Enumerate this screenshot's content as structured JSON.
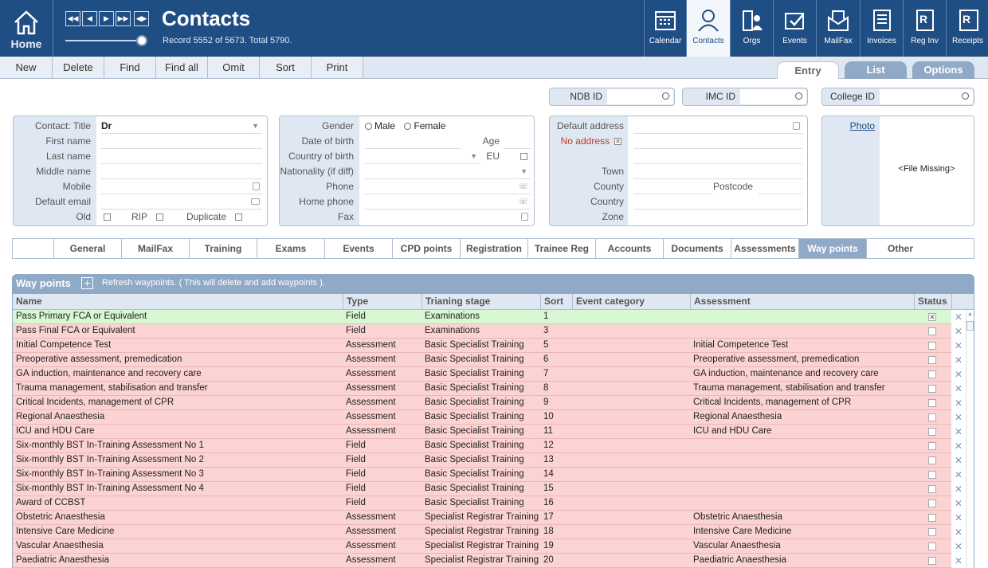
{
  "header": {
    "home_label": "Home",
    "title": "Contacts",
    "record_text": "Record 5552 of 5673. Total 5790.",
    "nav": [
      {
        "label": "Calendar",
        "icon": "calendar-icon"
      },
      {
        "label": "Contacts",
        "icon": "person-icon",
        "active": true
      },
      {
        "label": "Orgs",
        "icon": "orgs-icon"
      },
      {
        "label": "Events",
        "icon": "events-icon"
      },
      {
        "label": "MailFax",
        "icon": "mail-icon"
      },
      {
        "label": "Invoices",
        "icon": "invoice-icon"
      },
      {
        "label": "Reg Inv",
        "icon": "reg-inv-icon"
      },
      {
        "label": "Receipts",
        "icon": "receipts-icon"
      }
    ]
  },
  "toolbar": {
    "new": "New",
    "delete": "Delete",
    "find": "Find",
    "find_all": "Find all",
    "omit": "Omit",
    "sort": "Sort",
    "print": "Print"
  },
  "view_tabs": {
    "entry": "Entry",
    "list": "List",
    "options": "Options"
  },
  "ids": {
    "ndb": "NDB ID",
    "imc": "IMC ID",
    "college": "College ID"
  },
  "contact": {
    "title_label": "Contact: Title",
    "title_value": "Dr",
    "first_name": "First name",
    "last_name": "Last name",
    "middle_name": "Middle name",
    "mobile": "Mobile",
    "default_email": "Default email",
    "old": "Old",
    "rip": "RIP",
    "duplicate": "Duplicate"
  },
  "personal": {
    "gender": "Gender",
    "male": "Male",
    "female": "Female",
    "dob": "Date of birth",
    "age": "Age",
    "country_birth": "Country of birth",
    "eu": "EU",
    "nationality": "Nationality (if diff)",
    "phone": "Phone",
    "home_phone": "Home phone",
    "fax": "Fax"
  },
  "address": {
    "default_address": "Default address",
    "no_address": "No address",
    "town": "Town",
    "county": "County",
    "postcode": "Postcode",
    "country": "Country",
    "zone": "Zone"
  },
  "photo": {
    "label": "Photo",
    "missing": "<File Missing>"
  },
  "subtabs": [
    "General",
    "MailFax",
    "Training",
    "Exams",
    "Events",
    "CPD points",
    "Registration",
    "Trainee Reg",
    "Accounts",
    "Documents",
    "Assessments",
    "Way points",
    "Other"
  ],
  "waypoints": {
    "title": "Way points",
    "add_symbol": "+",
    "refresh": "Refresh waypoints. ( This will delete and add waypoints ).",
    "columns": {
      "name": "Name",
      "type": "Type",
      "stage": "Trianing stage",
      "sort": "Sort",
      "event": "Event category",
      "assessment": "Assessment",
      "status": "Status"
    },
    "rows": [
      {
        "name": "Pass Primary FCA or Equivalent",
        "type": "Field",
        "stage": "Examinations",
        "sort": "1",
        "assessment": "",
        "done": true
      },
      {
        "name": "Pass Final FCA or Equivalent",
        "type": "Field",
        "stage": "Examinations",
        "sort": "3",
        "assessment": ""
      },
      {
        "name": "Initial Competence Test",
        "type": "Assessment",
        "stage": "Basic Specialist Training",
        "sort": "5",
        "assessment": "Initial Competence Test"
      },
      {
        "name": "Preoperative assessment, premedication",
        "type": "Assessment",
        "stage": "Basic Specialist Training",
        "sort": "6",
        "assessment": "Preoperative assessment, premedication"
      },
      {
        "name": "GA induction, maintenance and recovery care",
        "type": "Assessment",
        "stage": "Basic Specialist Training",
        "sort": "7",
        "assessment": "GA induction, maintenance and recovery care"
      },
      {
        "name": "Trauma management, stabilisation and transfer",
        "type": "Assessment",
        "stage": "Basic Specialist Training",
        "sort": "8",
        "assessment": "Trauma management, stabilisation and transfer"
      },
      {
        "name": "Critical Incidents, management of CPR",
        "type": "Assessment",
        "stage": "Basic Specialist Training",
        "sort": "9",
        "assessment": "Critical Incidents, management of CPR"
      },
      {
        "name": "Regional Anaesthesia",
        "type": "Assessment",
        "stage": "Basic Specialist Training",
        "sort": "10",
        "assessment": "Regional Anaesthesia"
      },
      {
        "name": "ICU and HDU Care",
        "type": "Assessment",
        "stage": "Basic Specialist Training",
        "sort": "11",
        "assessment": "ICU and HDU Care"
      },
      {
        "name": "Six-monthly BST In-Training Assessment No 1",
        "type": "Field",
        "stage": "Basic Specialist Training",
        "sort": "12",
        "assessment": ""
      },
      {
        "name": "Six-monthly BST In-Training Assessment No 2",
        "type": "Field",
        "stage": "Basic Specialist Training",
        "sort": "13",
        "assessment": ""
      },
      {
        "name": "Six-monthly BST In-Training Assessment No 3",
        "type": "Field",
        "stage": "Basic Specialist Training",
        "sort": "14",
        "assessment": ""
      },
      {
        "name": "Six-monthly BST In-Training Assessment No 4",
        "type": "Field",
        "stage": "Basic Specialist Training",
        "sort": "15",
        "assessment": ""
      },
      {
        "name": "Award of CCBST",
        "type": "Field",
        "stage": "Basic Specialist Training",
        "sort": "16",
        "assessment": ""
      },
      {
        "name": "Obstetric Anaesthesia",
        "type": "Assessment",
        "stage": "Specialist Registrar Training",
        "sort": "17",
        "assessment": "Obstetric Anaesthesia"
      },
      {
        "name": "Intensive Care Medicine",
        "type": "Assessment",
        "stage": "Specialist Registrar Training",
        "sort": "18",
        "assessment": "Intensive Care Medicine"
      },
      {
        "name": "Vascular Anaesthesia",
        "type": "Assessment",
        "stage": "Specialist Registrar Training",
        "sort": "19",
        "assessment": "Vascular Anaesthesia"
      },
      {
        "name": "Paediatric Anaesthesia",
        "type": "Assessment",
        "stage": "Specialist Registrar Training",
        "sort": "20",
        "assessment": "Paediatric Anaesthesia"
      }
    ]
  },
  "colors": {
    "header": "#1f4e85",
    "accent": "#90a9c7",
    "row_pink": "#fbd3d3",
    "row_green": "#d8f7d3"
  }
}
